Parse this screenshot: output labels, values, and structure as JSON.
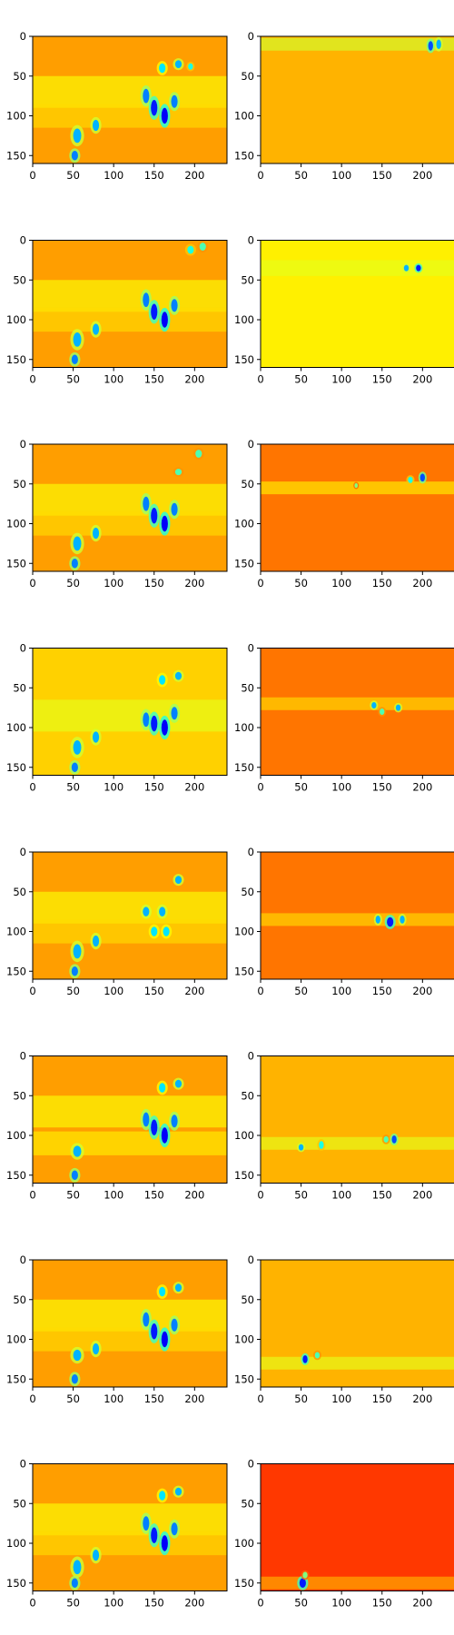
{
  "chart_data": {
    "type": "heatmap",
    "layout": "8 rows x 2 columns of image panels",
    "colormap": "jet",
    "x_ticks": [
      0,
      50,
      100,
      150,
      200
    ],
    "y_ticks": [
      0,
      50,
      100,
      150
    ],
    "xlim": [
      0,
      240
    ],
    "ylim": [
      160,
      0
    ],
    "panels": [
      {
        "row": 0,
        "col": 0,
        "bg": 0.72,
        "blobs": [
          [
            55,
            125,
            5,
            9,
            0.3
          ],
          [
            52,
            150,
            4,
            6,
            0.25
          ],
          [
            78,
            112,
            4,
            7,
            0.3
          ],
          [
            140,
            75,
            4,
            9,
            0.25
          ],
          [
            150,
            90,
            4,
            10,
            0.15
          ],
          [
            163,
            100,
            4,
            10,
            0.12
          ],
          [
            175,
            82,
            4,
            8,
            0.25
          ],
          [
            160,
            40,
            4,
            6,
            0.35
          ],
          [
            180,
            35,
            4,
            5,
            0.3
          ],
          [
            195,
            38,
            3,
            4,
            0.4
          ]
        ],
        "bands": [
          [
            70,
            20,
            0.62
          ],
          [
            100,
            15,
            0.66
          ]
        ]
      },
      {
        "row": 0,
        "col": 1,
        "bg": 0.7,
        "blobs": [
          [
            210,
            12,
            3,
            6,
            0.2
          ],
          [
            220,
            10,
            3,
            6,
            0.3
          ]
        ],
        "bands": [
          [
            10,
            8,
            0.58
          ]
        ]
      },
      {
        "row": 1,
        "col": 0,
        "bg": 0.72,
        "blobs": [
          [
            55,
            125,
            5,
            9,
            0.3
          ],
          [
            52,
            150,
            4,
            6,
            0.25
          ],
          [
            78,
            112,
            4,
            7,
            0.3
          ],
          [
            140,
            75,
            4,
            9,
            0.25
          ],
          [
            150,
            90,
            4,
            10,
            0.15
          ],
          [
            163,
            100,
            4,
            10,
            0.12
          ],
          [
            175,
            82,
            4,
            8,
            0.25
          ],
          [
            195,
            12,
            4,
            5,
            0.4
          ],
          [
            210,
            8,
            4,
            5,
            0.45
          ]
        ],
        "bands": [
          [
            70,
            20,
            0.62
          ],
          [
            100,
            15,
            0.66
          ]
        ]
      },
      {
        "row": 1,
        "col": 1,
        "bg": 0.64,
        "blobs": [
          [
            180,
            35,
            3,
            4,
            0.3
          ],
          [
            195,
            35,
            3,
            4,
            0.15
          ]
        ],
        "bands": [
          [
            35,
            10,
            0.6
          ]
        ]
      },
      {
        "row": 2,
        "col": 0,
        "bg": 0.72,
        "blobs": [
          [
            55,
            125,
            5,
            9,
            0.3
          ],
          [
            52,
            150,
            4,
            6,
            0.25
          ],
          [
            78,
            112,
            4,
            7,
            0.3
          ],
          [
            140,
            75,
            4,
            9,
            0.25
          ],
          [
            150,
            90,
            4,
            10,
            0.15
          ],
          [
            163,
            100,
            4,
            10,
            0.12
          ],
          [
            175,
            82,
            4,
            8,
            0.25
          ],
          [
            180,
            35,
            4,
            4,
            0.45
          ],
          [
            205,
            12,
            4,
            5,
            0.45
          ]
        ],
        "bands": [
          [
            70,
            20,
            0.62
          ],
          [
            100,
            15,
            0.66
          ]
        ]
      },
      {
        "row": 2,
        "col": 1,
        "bg": 0.76,
        "blobs": [
          [
            118,
            52,
            2,
            3,
            0.5
          ],
          [
            200,
            42,
            3,
            5,
            0.2
          ],
          [
            185,
            45,
            3,
            4,
            0.4
          ]
        ],
        "bands": [
          [
            55,
            8,
            0.64
          ]
        ]
      },
      {
        "row": 3,
        "col": 0,
        "bg": 0.67,
        "blobs": [
          [
            55,
            125,
            5,
            9,
            0.3
          ],
          [
            52,
            150,
            4,
            6,
            0.25
          ],
          [
            78,
            112,
            4,
            7,
            0.3
          ],
          [
            140,
            90,
            4,
            9,
            0.25
          ],
          [
            150,
            95,
            4,
            10,
            0.15
          ],
          [
            163,
            100,
            4,
            10,
            0.12
          ],
          [
            175,
            82,
            4,
            8,
            0.25
          ],
          [
            160,
            40,
            4,
            6,
            0.35
          ],
          [
            180,
            35,
            4,
            5,
            0.3
          ]
        ],
        "bands": [
          [
            85,
            20,
            0.6
          ]
        ]
      },
      {
        "row": 3,
        "col": 1,
        "bg": 0.76,
        "blobs": [
          [
            140,
            72,
            3,
            4,
            0.3
          ],
          [
            150,
            80,
            3,
            4,
            0.45
          ],
          [
            170,
            75,
            3,
            4,
            0.3
          ]
        ],
        "bands": [
          [
            70,
            8,
            0.66
          ]
        ]
      },
      {
        "row": 4,
        "col": 0,
        "bg": 0.72,
        "blobs": [
          [
            55,
            125,
            5,
            9,
            0.3
          ],
          [
            52,
            150,
            4,
            6,
            0.25
          ],
          [
            78,
            112,
            4,
            7,
            0.3
          ],
          [
            140,
            75,
            4,
            6,
            0.3
          ],
          [
            160,
            75,
            4,
            6,
            0.3
          ],
          [
            150,
            100,
            4,
            6,
            0.35
          ],
          [
            165,
            100,
            4,
            6,
            0.35
          ],
          [
            180,
            35,
            4,
            5,
            0.3
          ]
        ],
        "bands": [
          [
            70,
            20,
            0.62
          ],
          [
            100,
            15,
            0.66
          ]
        ]
      },
      {
        "row": 4,
        "col": 1,
        "bg": 0.76,
        "blobs": [
          [
            145,
            85,
            3,
            5,
            0.3
          ],
          [
            160,
            88,
            4,
            6,
            0.15
          ],
          [
            175,
            85,
            3,
            5,
            0.3
          ]
        ],
        "bands": [
          [
            85,
            8,
            0.66
          ]
        ]
      },
      {
        "row": 5,
        "col": 0,
        "bg": 0.72,
        "blobs": [
          [
            55,
            120,
            5,
            7,
            0.3
          ],
          [
            52,
            150,
            4,
            6,
            0.25
          ],
          [
            140,
            80,
            4,
            9,
            0.25
          ],
          [
            150,
            90,
            4,
            10,
            0.15
          ],
          [
            163,
            100,
            4,
            10,
            0.12
          ],
          [
            175,
            82,
            4,
            8,
            0.25
          ],
          [
            160,
            40,
            4,
            6,
            0.35
          ],
          [
            180,
            35,
            4,
            5,
            0.3
          ]
        ],
        "bands": [
          [
            70,
            20,
            0.62
          ],
          [
            110,
            15,
            0.64
          ]
        ]
      },
      {
        "row": 5,
        "col": 1,
        "bg": 0.7,
        "blobs": [
          [
            50,
            115,
            3,
            4,
            0.3
          ],
          [
            75,
            112,
            3,
            5,
            0.4
          ],
          [
            165,
            105,
            3,
            5,
            0.2
          ],
          [
            155,
            105,
            3,
            4,
            0.45
          ]
        ],
        "bands": [
          [
            110,
            8,
            0.6
          ]
        ]
      },
      {
        "row": 6,
        "col": 0,
        "bg": 0.72,
        "blobs": [
          [
            55,
            120,
            5,
            7,
            0.3
          ],
          [
            52,
            150,
            4,
            6,
            0.25
          ],
          [
            78,
            112,
            4,
            7,
            0.3
          ],
          [
            140,
            75,
            4,
            9,
            0.25
          ],
          [
            150,
            90,
            4,
            10,
            0.15
          ],
          [
            163,
            100,
            4,
            10,
            0.12
          ],
          [
            175,
            82,
            4,
            8,
            0.25
          ],
          [
            160,
            40,
            4,
            6,
            0.35
          ],
          [
            180,
            35,
            4,
            5,
            0.3
          ]
        ],
        "bands": [
          [
            70,
            20,
            0.62
          ],
          [
            100,
            15,
            0.66
          ]
        ]
      },
      {
        "row": 6,
        "col": 1,
        "bg": 0.7,
        "blobs": [
          [
            55,
            125,
            3,
            5,
            0.15
          ],
          [
            70,
            120,
            3,
            4,
            0.45
          ]
        ],
        "bands": [
          [
            130,
            8,
            0.6
          ]
        ]
      },
      {
        "row": 7,
        "col": 0,
        "bg": 0.72,
        "blobs": [
          [
            55,
            130,
            5,
            9,
            0.3
          ],
          [
            52,
            150,
            4,
            6,
            0.25
          ],
          [
            78,
            115,
            4,
            7,
            0.3
          ],
          [
            140,
            75,
            4,
            9,
            0.25
          ],
          [
            150,
            90,
            4,
            10,
            0.15
          ],
          [
            163,
            100,
            4,
            10,
            0.12
          ],
          [
            175,
            82,
            4,
            8,
            0.25
          ],
          [
            160,
            40,
            4,
            6,
            0.35
          ],
          [
            180,
            35,
            4,
            5,
            0.3
          ]
        ],
        "bands": [
          [
            70,
            20,
            0.62
          ],
          [
            100,
            15,
            0.66
          ]
        ]
      },
      {
        "row": 7,
        "col": 1,
        "bg": 0.82,
        "blobs": [
          [
            52,
            150,
            4,
            6,
            0.15
          ],
          [
            55,
            140,
            3,
            4,
            0.5
          ]
        ],
        "bands": [
          [
            150,
            8,
            0.7
          ]
        ]
      }
    ]
  }
}
